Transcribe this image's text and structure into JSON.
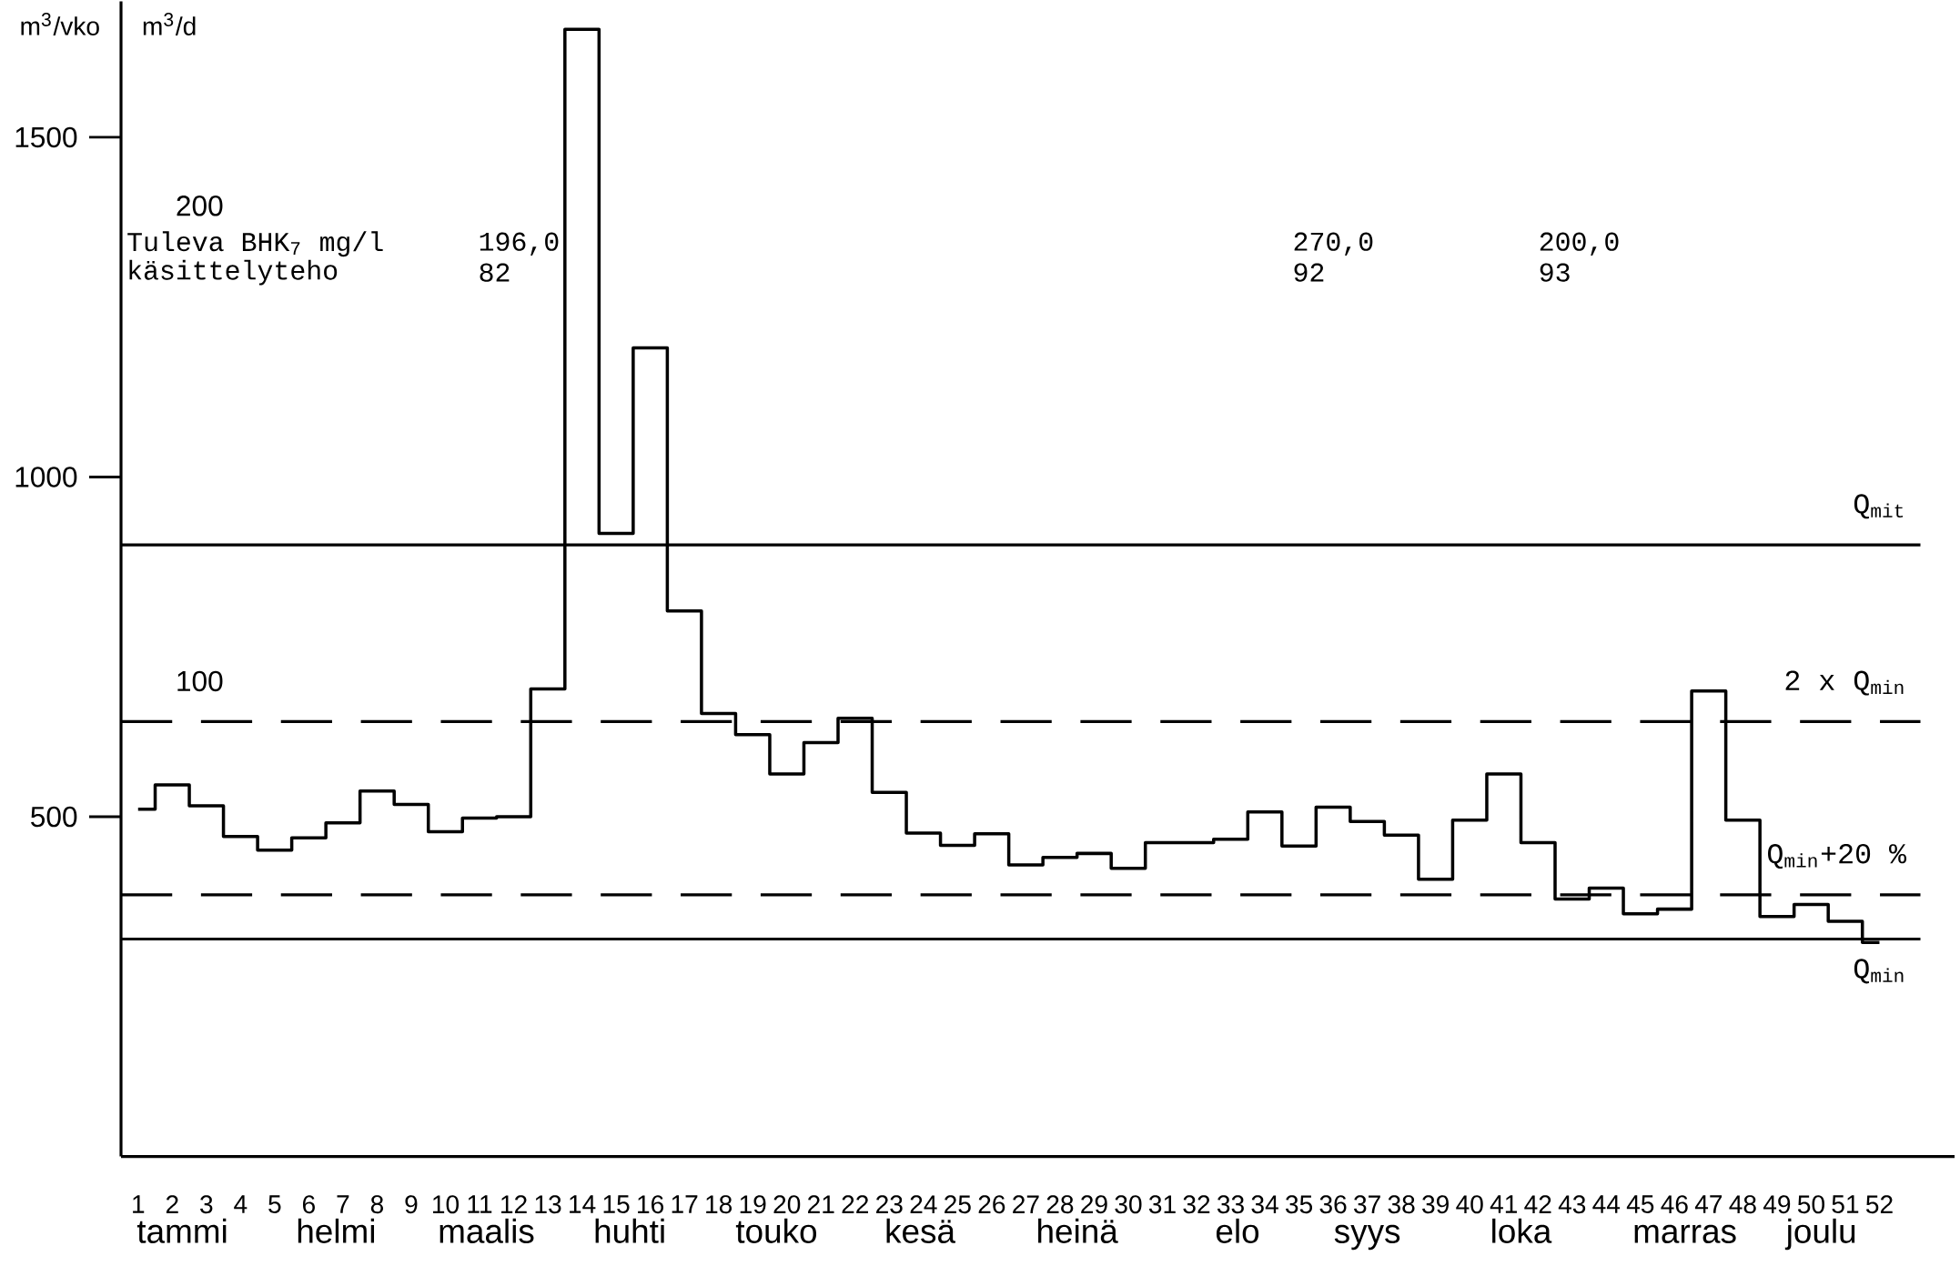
{
  "chart_data": {
    "type": "step",
    "x": [
      1,
      2,
      3,
      4,
      5,
      6,
      7,
      8,
      9,
      10,
      11,
      12,
      13,
      14,
      15,
      16,
      17,
      18,
      19,
      20,
      21,
      22,
      23,
      24,
      25,
      26,
      27,
      28,
      29,
      30,
      31,
      32,
      33,
      34,
      35,
      36,
      37,
      38,
      39,
      40,
      41,
      42,
      43,
      44,
      45,
      46,
      47,
      48,
      49,
      50,
      51,
      52
    ],
    "series": [
      {
        "color": "#000000",
        "values": [
          511,
          547,
          516,
          471,
          451,
          469,
          491,
          538,
          518,
          478,
          498,
          500,
          688,
          1659,
          917,
          1190,
          803,
          652,
          621,
          563,
          609,
          645,
          536,
          476,
          458,
          475,
          429,
          440,
          446,
          424,
          462,
          462,
          467,
          507,
          457,
          514,
          493,
          473,
          408,
          495,
          563,
          462,
          379,
          395,
          357,
          364,
          685,
          495,
          353,
          371,
          346,
          315
        ]
      }
    ],
    "ylabel": "m$^{3}$/vko",
    "y2label": "m$^{3}$/d",
    "xlim": [
      0.5,
      54.2
    ],
    "xticks": [
      1,
      2,
      3,
      4,
      5,
      6,
      7,
      8,
      9,
      10,
      11,
      12,
      13,
      14,
      15,
      16,
      17,
      18,
      19,
      20,
      21,
      22,
      23,
      24,
      25,
      26,
      27,
      28,
      29,
      30,
      31,
      32,
      33,
      34,
      35,
      36,
      37,
      38,
      39,
      40,
      41,
      42,
      43,
      44,
      45,
      46,
      47,
      48,
      49,
      50,
      51,
      52
    ],
    "ylim": [
      0,
      1700
    ],
    "yticks": [
      500,
      1000,
      1500
    ],
    "y2lim": [
      0,
      243
    ],
    "y2ticks": [
      100,
      200
    ],
    "ref_lines": [
      {
        "axis": "y",
        "value": 900,
        "label": "Q$_{mit}$",
        "line_style": "solid"
      },
      {
        "axis": "y",
        "value": 640,
        "label": "2 x Q$_{min}$",
        "line_style": "dashed"
      },
      {
        "axis": "y",
        "value": 385,
        "label": "Q$_{min}$+20 %",
        "line_style": "dashed"
      },
      {
        "axis": "y",
        "value": 320,
        "label": "Q$_{min}$",
        "line_style": "solid"
      }
    ],
    "annotations": [
      "Tuleva BHK$_{7}$ mg/l",
      "käsittelyteho",
      "196,0",
      "82",
      "270,0",
      "92",
      "200,0",
      "93",
      "tammi",
      "helmi",
      "maalis",
      "huhti",
      "touko",
      "kesä",
      "heinä",
      "elo",
      "syys",
      "loka",
      "marras",
      "joulu"
    ],
    "grid": false,
    "marker": "none",
    "line_style": "solid"
  }
}
